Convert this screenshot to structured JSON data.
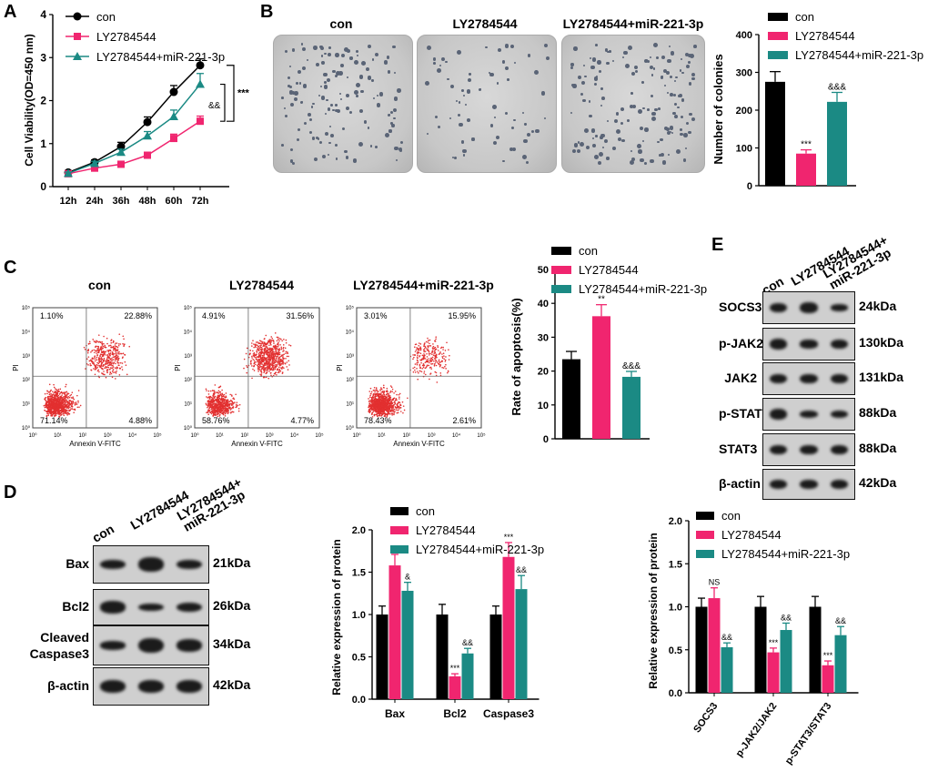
{
  "panels": {
    "A": "A",
    "B": "B",
    "C": "C",
    "D": "D",
    "E": "E"
  },
  "legend_labels": [
    "con",
    "LY2784544",
    "LY2784544+miR-221-3p"
  ],
  "colors": {
    "con": "#000000",
    "ly": "#f0256f",
    "mir": "#1b8a84"
  },
  "panelA": {
    "chart_data": {
      "type": "line",
      "title": "",
      "xlabel": "",
      "ylabel": "Cell Viability(OD=450 nm)",
      "categories": [
        "12h",
        "24h",
        "36h",
        "48h",
        "60h",
        "72h"
      ],
      "ylim": [
        0,
        4
      ],
      "yticks": [
        "0",
        "1",
        "2",
        "3",
        "4"
      ],
      "series": [
        {
          "name": "con",
          "values": [
            0.33,
            0.57,
            0.93,
            1.5,
            2.2,
            2.82
          ],
          "err": [
            0.04,
            0.05,
            0.1,
            0.12,
            0.15,
            0.15
          ]
        },
        {
          "name": "LY2784544",
          "values": [
            0.3,
            0.43,
            0.52,
            0.73,
            1.12,
            1.52
          ],
          "err": [
            0.03,
            0.04,
            0.05,
            0.06,
            0.1,
            0.12
          ]
        },
        {
          "name": "LY2784544+miR-221-3p",
          "values": [
            0.31,
            0.54,
            0.8,
            1.18,
            1.63,
            2.38
          ],
          "err": [
            0.03,
            0.05,
            0.07,
            0.1,
            0.15,
            0.25
          ]
        }
      ],
      "annotations": [
        "***",
        "&&"
      ]
    }
  },
  "panelB": {
    "plate_labels": [
      "con",
      "LY2784544",
      "LY2784544+miR-221-3p"
    ],
    "chart_data": {
      "type": "bar",
      "ylabel": "Number of colonies",
      "categories": [
        "con",
        "LY2784544",
        "LY2784544+miR-221-3p"
      ],
      "values": [
        275,
        85,
        222
      ],
      "err": [
        27,
        10,
        25
      ],
      "ylim": [
        0,
        400
      ],
      "yticks": [
        "0",
        "100",
        "200",
        "300",
        "400"
      ],
      "sig": [
        "",
        "***",
        "&&&"
      ]
    }
  },
  "panelC": {
    "plots": [
      {
        "title": "con",
        "q_ul": "1.10%",
        "q_ur": "22.88%",
        "q_ll": "71.14%",
        "q_lr": "4.88%"
      },
      {
        "title": "LY2784544",
        "q_ul": "4.91%",
        "q_ur": "31.56%",
        "q_ll": "58.76%",
        "q_lr": "4.77%"
      },
      {
        "title": "LY2784544+miR-221-3p",
        "q_ul": "3.01%",
        "q_ur": "15.95%",
        "q_ll": "78.43%",
        "q_lr": "2.61%"
      }
    ],
    "flow_ylabel": "PI",
    "flow_xlabel": "Annexin V-FITC",
    "flow_ticks": [
      "10⁰",
      "10¹",
      "10²",
      "10³",
      "10⁴",
      "10⁵"
    ],
    "chart_data": {
      "type": "bar",
      "ylabel": "Rate of apoptosis(%)",
      "categories": [
        "con",
        "LY2784544",
        "LY2784544+miR-221-3p"
      ],
      "values": [
        23.5,
        36.2,
        18.3
      ],
      "err": [
        2.3,
        3.4,
        1.6
      ],
      "ylim": [
        0,
        50
      ],
      "yticks": [
        "0",
        "10",
        "20",
        "30",
        "40",
        "50"
      ],
      "sig": [
        "",
        "**",
        "&&&"
      ]
    }
  },
  "panelD": {
    "blot": {
      "columns": [
        "con",
        "LY2784544",
        "LY2784544+\nmiR-221-3p"
      ],
      "rows": [
        {
          "name": "Bax",
          "kda": "21kDa"
        },
        {
          "name": "Bcl2",
          "kda": "26kDa"
        },
        {
          "name": "Cleaved\nCaspase3",
          "kda": "34kDa"
        },
        {
          "name": "β-actin",
          "kda": "42kDa"
        }
      ]
    },
    "chart_data": {
      "type": "bar",
      "ylabel": "Relative expression of protein",
      "categories": [
        "Bax",
        "Bcl2",
        "Caspase3"
      ],
      "series": [
        {
          "name": "con",
          "values": [
            1.0,
            1.0,
            1.0
          ],
          "err": [
            0.1,
            0.12,
            0.1
          ]
        },
        {
          "name": "LY2784544",
          "values": [
            1.58,
            0.27,
            1.68
          ],
          "err": [
            0.13,
            0.03,
            0.17
          ]
        },
        {
          "name": "LY2784544+miR-221-3p",
          "values": [
            1.28,
            0.54,
            1.3
          ],
          "err": [
            0.1,
            0.06,
            0.16
          ]
        }
      ],
      "sig": [
        [
          "",
          "***",
          "&"
        ],
        [
          "",
          "***",
          "&&"
        ],
        [
          "",
          "***",
          "&&"
        ]
      ],
      "ylim": [
        0,
        2.0
      ],
      "yticks": [
        "0.0",
        "0.5",
        "1.0",
        "1.5",
        "2.0"
      ]
    }
  },
  "panelE": {
    "blot": {
      "columns": [
        "con",
        "LY2784544",
        "LY2784544+\nmiR-221-3p"
      ],
      "rows": [
        {
          "name": "SOCS3",
          "kda": "24kDa"
        },
        {
          "name": "p-JAK2",
          "kda": "130kDa"
        },
        {
          "name": "JAK2",
          "kda": "131kDa"
        },
        {
          "name": "p-STAT3",
          "kda": "88kDa"
        },
        {
          "name": "STAT3",
          "kda": "88kDa"
        },
        {
          "name": "β-actin",
          "kda": "42kDa"
        }
      ]
    },
    "chart_data": {
      "type": "bar",
      "ylabel": "Relative expression of protein",
      "categories": [
        "SOCS3",
        "p-JAK2/JAK2",
        "p-STAT3/STAT3"
      ],
      "series": [
        {
          "name": "con",
          "values": [
            1.0,
            1.0,
            1.0
          ],
          "err": [
            0.1,
            0.12,
            0.12
          ]
        },
        {
          "name": "LY2784544",
          "values": [
            1.1,
            0.47,
            0.32
          ],
          "err": [
            0.12,
            0.05,
            0.05
          ]
        },
        {
          "name": "LY2784544+miR-221-3p",
          "values": [
            0.53,
            0.73,
            0.67
          ],
          "err": [
            0.05,
            0.08,
            0.1
          ]
        }
      ],
      "sig": [
        [
          "",
          "NS",
          "&&"
        ],
        [
          "",
          "***",
          "&&"
        ],
        [
          "",
          "***",
          "&&"
        ]
      ],
      "ylim": [
        0,
        2.0
      ],
      "yticks": [
        "0.0",
        "0.5",
        "1.0",
        "1.5",
        "2.0"
      ]
    }
  }
}
